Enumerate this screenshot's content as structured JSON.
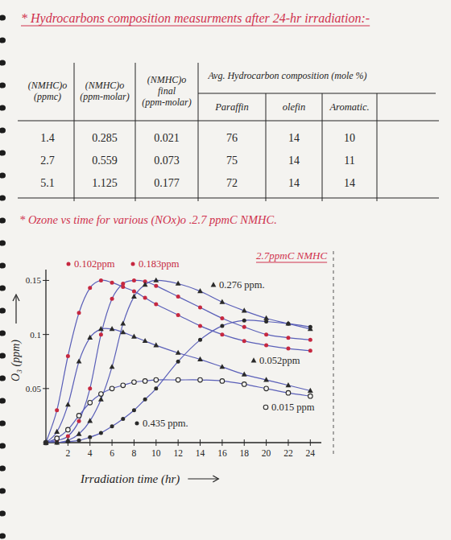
{
  "heading": "* Hydrocarbons composition measurments after 24-hr irradiation:-",
  "table": {
    "columns": [
      "(NMHC)o (ppmc)",
      "(NMHC)o (ppm-molar)",
      "(NMHC)o final (ppm-molar)"
    ],
    "group": "Avg. Hydrocarbon composition (mole %)",
    "subcolumns": [
      "Paraffin",
      "olefin",
      "Aromatic."
    ],
    "rows": [
      [
        "1.4",
        "0.285",
        "0.021",
        "76",
        "14",
        "10"
      ],
      [
        "2.7",
        "0.559",
        "0.073",
        "75",
        "14",
        "11"
      ],
      [
        "5.1",
        "1.125",
        "0.177",
        "72",
        "14",
        "14"
      ]
    ]
  },
  "chart_data": {
    "type": "line",
    "title": "* Ozone vs time for various (NOx)o .2.7 ppmC NMHC.",
    "annotation": "2.7ppmC NMHC",
    "x_label": "Irradiation time (hr)",
    "y_label": "O₃ (ppm)",
    "x": [
      0,
      1,
      2,
      3,
      4,
      5,
      6,
      7,
      8,
      9,
      10,
      12,
      14,
      16,
      18,
      20,
      22,
      24
    ],
    "xlim": [
      0,
      25
    ],
    "xticks": [
      2,
      4,
      6,
      8,
      10,
      12,
      14,
      16,
      18,
      20,
      22,
      24
    ],
    "ylim": [
      0,
      0.16
    ],
    "yticks": [
      0.05,
      0.1,
      0.15
    ],
    "grid": false,
    "series": [
      {
        "name": "0.102ppm",
        "color": "#c62840",
        "marker": "circle",
        "values": [
          0,
          0.03,
          0.08,
          0.12,
          0.143,
          0.15,
          0.148,
          0.144,
          0.14,
          0.134,
          0.128,
          0.118,
          0.108,
          0.1,
          0.094,
          0.09,
          0.087,
          0.085
        ]
      },
      {
        "name": "0.183ppm",
        "color": "#c62840",
        "marker": "circle",
        "values": [
          0,
          0.002,
          0.006,
          0.02,
          0.05,
          0.1,
          0.133,
          0.147,
          0.15,
          0.149,
          0.145,
          0.135,
          0.125,
          0.115,
          0.107,
          0.1,
          0.097,
          0.095
        ]
      },
      {
        "name": "0.276 ppm.",
        "color": "#2a2a2a",
        "marker": "triangle",
        "values": [
          0,
          0,
          0.002,
          0.008,
          0.02,
          0.04,
          0.07,
          0.11,
          0.135,
          0.146,
          0.15,
          0.147,
          0.14,
          0.13,
          0.122,
          0.115,
          0.11,
          0.105
        ]
      },
      {
        "name": "0.052ppm",
        "color": "#2a2a2a",
        "marker": "triangle",
        "values": [
          0,
          0.01,
          0.035,
          0.075,
          0.097,
          0.105,
          0.105,
          0.102,
          0.098,
          0.094,
          0.09,
          0.083,
          0.077,
          0.07,
          0.063,
          0.058,
          0.053,
          0.048
        ]
      },
      {
        "name": "0.015 ppm",
        "color": "#2a2a2a",
        "marker": "open-circle",
        "values": [
          0,
          0.004,
          0.012,
          0.025,
          0.037,
          0.045,
          0.05,
          0.053,
          0.056,
          0.057,
          0.058,
          0.058,
          0.058,
          0.057,
          0.054,
          0.05,
          0.046,
          0.043
        ]
      },
      {
        "name": "0.435 ppm.",
        "color": "#2a2a2a",
        "marker": "circle",
        "values": [
          0,
          0,
          0.001,
          0.002,
          0.005,
          0.009,
          0.015,
          0.022,
          0.03,
          0.04,
          0.05,
          0.075,
          0.095,
          0.108,
          0.113,
          0.112,
          0.11,
          0.107
        ]
      }
    ]
  }
}
